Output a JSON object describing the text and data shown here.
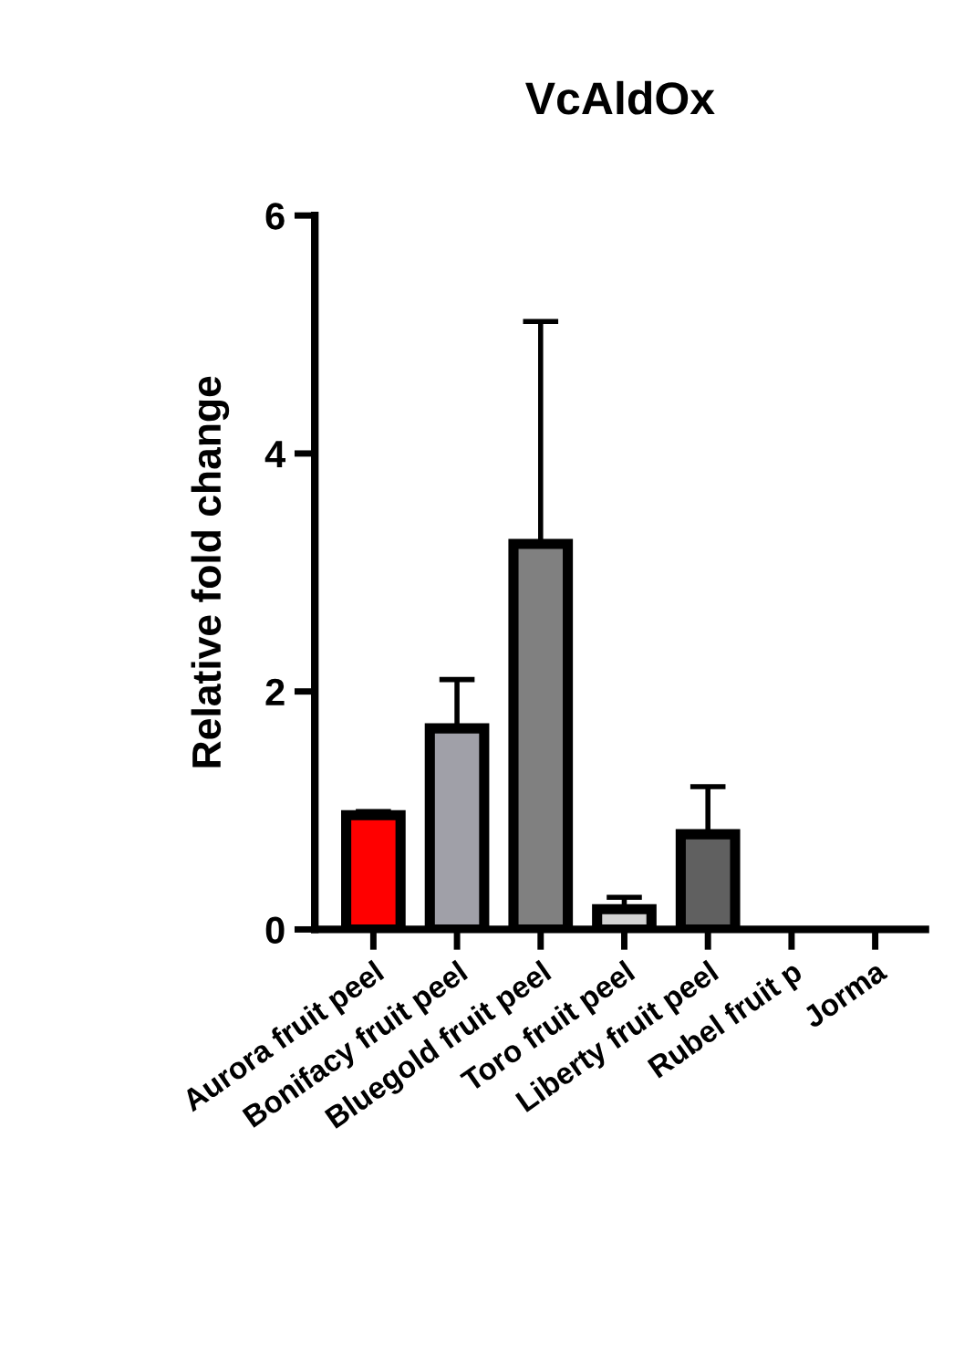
{
  "chart_data": {
    "type": "bar",
    "title": "VcAldOx",
    "ylabel": "Relative fold change",
    "categories": [
      "Aurora fruit peel",
      "Bonifacy fruit peel",
      "Bluegold fruit peel",
      "Toro fruit peel",
      "Liberty fruit peel",
      "Rubel fruit p",
      "Jorma"
    ],
    "values": [
      0.96,
      1.69,
      3.24,
      0.17,
      0.8,
      null,
      null
    ],
    "colors": [
      "#ff0000",
      "#a0a0a8",
      "#808080",
      "#d3d3d3",
      "#606060",
      null,
      null
    ],
    "errors": [
      [
        0.96,
        0.99
      ],
      [
        1.69,
        2.1
      ],
      [
        3.24,
        5.11
      ],
      [
        0.17,
        0.27
      ],
      [
        0.8,
        1.2
      ],
      null,
      null
    ],
    "ylim": [
      0,
      6
    ],
    "yticks": [
      0,
      2,
      4,
      6
    ],
    "grid": false,
    "legend": false
  }
}
